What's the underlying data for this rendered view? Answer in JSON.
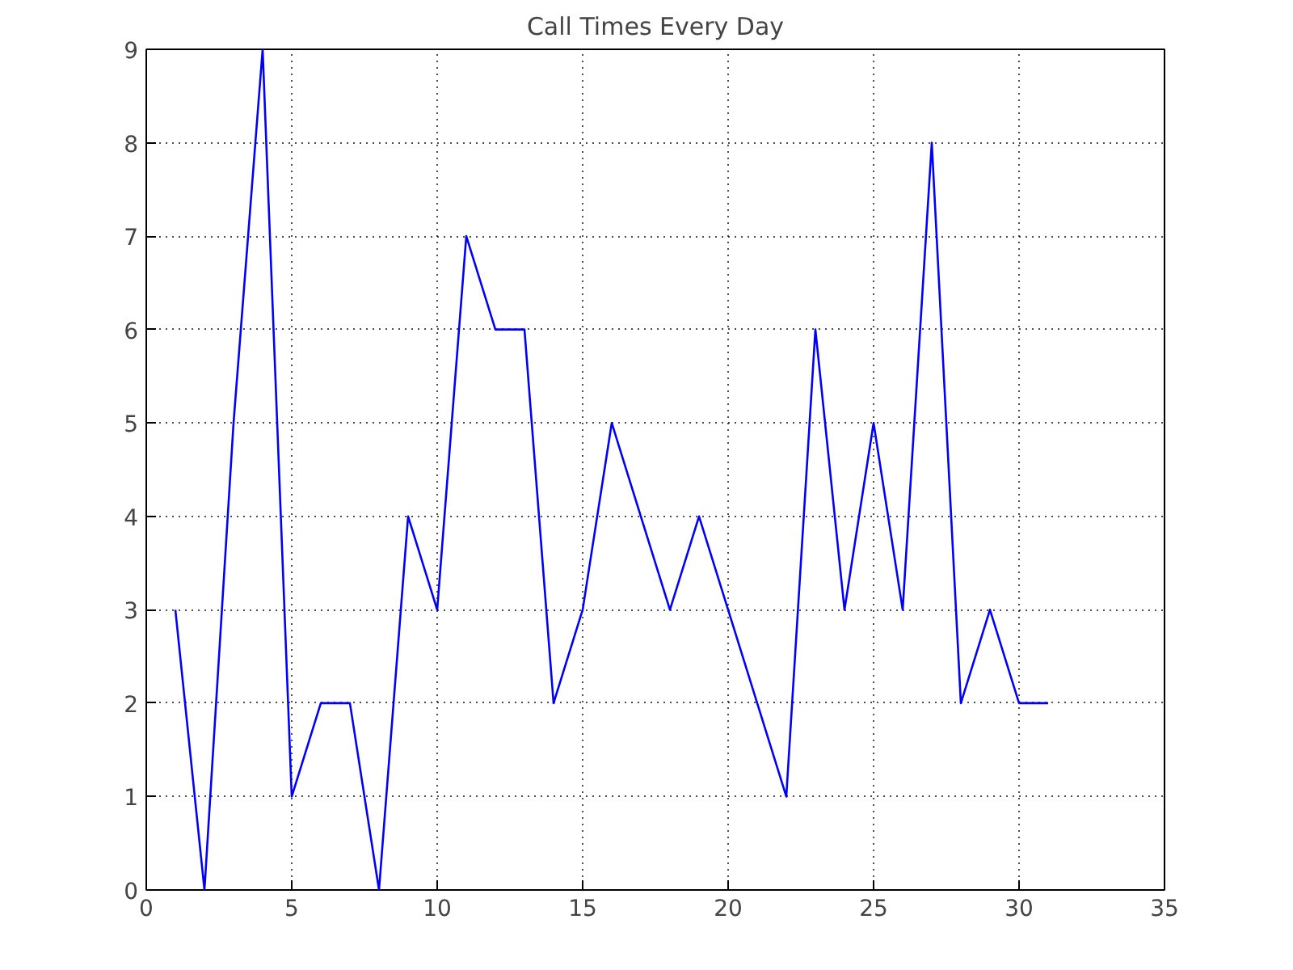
{
  "chart_data": {
    "type": "line",
    "title": "Call Times Every Day",
    "x": [
      1,
      2,
      3,
      4,
      5,
      6,
      7,
      8,
      9,
      10,
      11,
      12,
      13,
      14,
      15,
      16,
      17,
      18,
      19,
      20,
      21,
      22,
      23,
      24,
      25,
      26,
      27,
      28,
      29,
      30,
      31
    ],
    "series": [
      {
        "color": "#0000ff",
        "values": [
          3,
          0,
          5,
          9,
          1,
          2,
          2,
          0,
          4,
          3,
          7,
          6,
          6,
          2,
          3,
          5,
          4,
          3,
          4,
          3,
          2,
          1,
          6,
          3,
          5,
          3,
          8,
          2,
          3,
          2,
          2
        ]
      }
    ],
    "xlim": [
      0,
      35
    ],
    "xticks": [
      0,
      5,
      10,
      15,
      20,
      25,
      30,
      35
    ],
    "ylim": [
      0,
      9
    ],
    "yticks": [
      0,
      1,
      2,
      3,
      4,
      5,
      6,
      7,
      8,
      9
    ],
    "grid": true,
    "line_style": "solid"
  }
}
